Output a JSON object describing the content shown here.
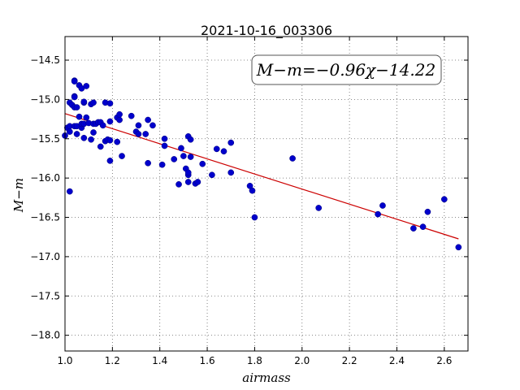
{
  "chart_data": {
    "type": "scatter",
    "title": "2021-10-16_003306",
    "xlabel": "airmass",
    "ylabel": "M−m",
    "xlim": [
      1.0,
      2.7
    ],
    "ylim": [
      -18.2,
      -14.2
    ],
    "y_inverted": true,
    "grid": true,
    "x_ticks": [
      1.0,
      1.2,
      1.4,
      1.6,
      1.8,
      2.0,
      2.2,
      2.4,
      2.6
    ],
    "x_tick_labels": [
      "1.0",
      "1.2",
      "1.4",
      "1.6",
      "1.8",
      "2.0",
      "2.2",
      "2.4",
      "2.6"
    ],
    "y_ticks": [
      -14.5,
      -15.0,
      -15.5,
      -16.0,
      -16.5,
      -17.0,
      -17.5,
      -18.0
    ],
    "y_tick_labels": [
      "−14.5",
      "−15.0",
      "−15.5",
      "−16.0",
      "−16.5",
      "−17.0",
      "−17.5",
      "−18.0"
    ],
    "annotation": "M−m=−0.96χ−14.22",
    "fit": {
      "slope": -0.96,
      "intercept": -14.22,
      "x_range": [
        1.0,
        2.66
      ],
      "color": "#cc0000"
    },
    "point_color": "#0000cc",
    "points": [
      [
        1.0,
        -15.46
      ],
      [
        1.01,
        -15.36
      ],
      [
        1.02,
        -15.41
      ],
      [
        1.02,
        -15.34
      ],
      [
        1.02,
        -16.17
      ],
      [
        1.02,
        -15.04
      ],
      [
        1.03,
        -15.07
      ],
      [
        1.04,
        -14.76
      ],
      [
        1.04,
        -14.77
      ],
      [
        1.04,
        -14.96
      ],
      [
        1.04,
        -14.97
      ],
      [
        1.04,
        -15.1
      ],
      [
        1.04,
        -15.34
      ],
      [
        1.05,
        -15.1
      ],
      [
        1.05,
        -15.34
      ],
      [
        1.05,
        -15.44
      ],
      [
        1.06,
        -15.22
      ],
      [
        1.06,
        -14.82
      ],
      [
        1.07,
        -14.86
      ],
      [
        1.07,
        -15.36
      ],
      [
        1.07,
        -15.31
      ],
      [
        1.08,
        -15.04
      ],
      [
        1.08,
        -15.03
      ],
      [
        1.08,
        -15.49
      ],
      [
        1.08,
        -15.31
      ],
      [
        1.09,
        -14.83
      ],
      [
        1.09,
        -15.23
      ],
      [
        1.1,
        -15.3
      ],
      [
        1.11,
        -15.51
      ],
      [
        1.11,
        -15.06
      ],
      [
        1.12,
        -15.04
      ],
      [
        1.12,
        -15.31
      ],
      [
        1.12,
        -15.42
      ],
      [
        1.13,
        -15.31
      ],
      [
        1.14,
        -15.29
      ],
      [
        1.15,
        -15.6
      ],
      [
        1.15,
        -15.29
      ],
      [
        1.16,
        -15.33
      ],
      [
        1.17,
        -15.04
      ],
      [
        1.17,
        -15.53
      ],
      [
        1.18,
        -15.51
      ],
      [
        1.19,
        -15.05
      ],
      [
        1.19,
        -15.28
      ],
      [
        1.19,
        -15.78
      ],
      [
        1.19,
        -15.52
      ],
      [
        1.22,
        -15.23
      ],
      [
        1.22,
        -15.54
      ],
      [
        1.23,
        -15.26
      ],
      [
        1.23,
        -15.19
      ],
      [
        1.24,
        -15.72
      ],
      [
        1.28,
        -15.21
      ],
      [
        1.3,
        -15.41
      ],
      [
        1.31,
        -15.33
      ],
      [
        1.31,
        -15.44
      ],
      [
        1.34,
        -15.44
      ],
      [
        1.35,
        -15.81
      ],
      [
        1.35,
        -15.26
      ],
      [
        1.37,
        -15.33
      ],
      [
        1.41,
        -15.83
      ],
      [
        1.42,
        -15.5
      ],
      [
        1.42,
        -15.59
      ],
      [
        1.46,
        -15.76
      ],
      [
        1.48,
        -16.08
      ],
      [
        1.49,
        -15.62
      ],
      [
        1.5,
        -15.72
      ],
      [
        1.51,
        -15.88
      ],
      [
        1.52,
        -16.05
      ],
      [
        1.52,
        -15.47
      ],
      [
        1.52,
        -15.96
      ],
      [
        1.52,
        -15.93
      ],
      [
        1.53,
        -15.51
      ],
      [
        1.53,
        -15.73
      ],
      [
        1.55,
        -16.07
      ],
      [
        1.56,
        -16.05
      ],
      [
        1.58,
        -15.82
      ],
      [
        1.62,
        -15.96
      ],
      [
        1.64,
        -15.63
      ],
      [
        1.67,
        -15.66
      ],
      [
        1.7,
        -15.55
      ],
      [
        1.7,
        -15.93
      ],
      [
        1.78,
        -16.1
      ],
      [
        1.79,
        -16.16
      ],
      [
        1.8,
        -16.5
      ],
      [
        1.96,
        -15.75
      ],
      [
        2.07,
        -16.38
      ],
      [
        2.32,
        -16.46
      ],
      [
        2.34,
        -16.35
      ],
      [
        2.47,
        -16.64
      ],
      [
        2.51,
        -16.62
      ],
      [
        2.53,
        -16.43
      ],
      [
        2.6,
        -16.27
      ],
      [
        2.66,
        -16.88
      ]
    ]
  }
}
